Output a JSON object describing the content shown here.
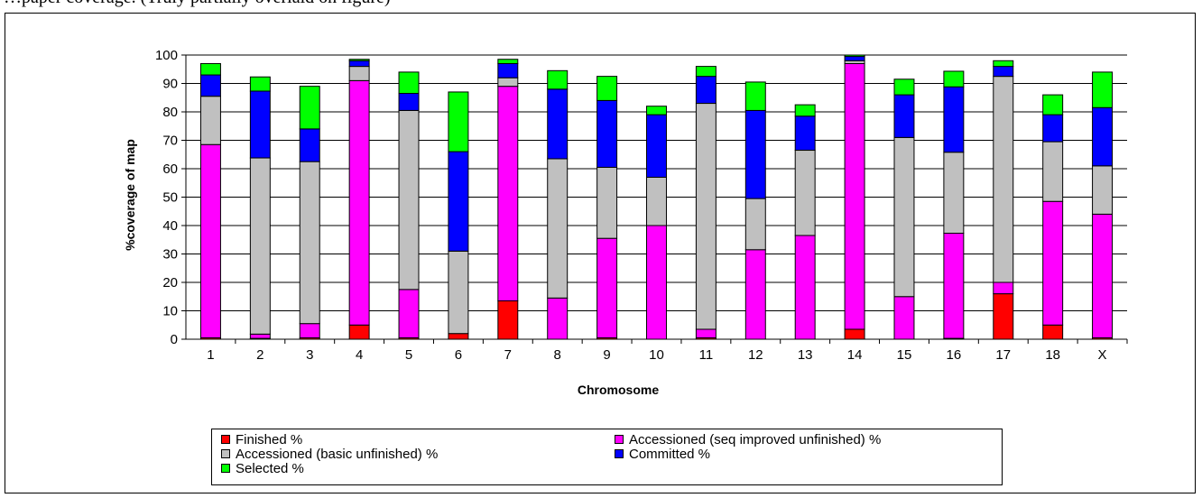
{
  "top_text": "…paper coverage. (Truly partially overlaid on figure)",
  "chart_data": {
    "type": "bar",
    "stacked": true,
    "xlabel": "Chromosome",
    "ylabel": "%coverage of map",
    "ylim": [
      0,
      100
    ],
    "yticks": [
      0,
      10,
      20,
      30,
      40,
      50,
      60,
      70,
      80,
      90,
      100
    ],
    "grid": true,
    "legend_position": "bottom",
    "categories": [
      "1",
      "2",
      "3",
      "4",
      "5",
      "6",
      "7",
      "8",
      "9",
      "10",
      "11",
      "12",
      "13",
      "14",
      "15",
      "16",
      "17",
      "18",
      "X"
    ],
    "series": [
      {
        "name": "Finished %",
        "color": "#ff0000",
        "values": [
          0.5,
          0.3,
          0.5,
          5,
          0.5,
          2,
          13.5,
          0,
          0.5,
          0,
          0.5,
          0,
          0,
          3.5,
          0,
          0.3,
          16,
          5,
          0.5
        ]
      },
      {
        "name": "Accessioned (seq improved unfinished) %",
        "color": "#ff00ff",
        "values": [
          68,
          1.5,
          5,
          86,
          17,
          0,
          75.5,
          14.5,
          35,
          40,
          3,
          31.5,
          36.5,
          93.5,
          15,
          37,
          4,
          43.5,
          43.5
        ]
      },
      {
        "name": "Accessioned (basic unfinished) %",
        "color": "#c0c0c0",
        "values": [
          17,
          62,
          57,
          5,
          63,
          29,
          3,
          49,
          25,
          17,
          79.5,
          18,
          30,
          1,
          56,
          28.5,
          72.5,
          21,
          17
        ]
      },
      {
        "name": "Committed %",
        "color": "#0000ff",
        "values": [
          7.5,
          23.5,
          11.5,
          2,
          6,
          35,
          5,
          24.5,
          23.5,
          22,
          9.5,
          31,
          12,
          1.5,
          15,
          23,
          3.5,
          9.5,
          20.5
        ]
      },
      {
        "name": "Selected %",
        "color": "#00ff00",
        "values": [
          4,
          5,
          15,
          0.5,
          7.5,
          21,
          1.5,
          6.5,
          8.5,
          3,
          3.5,
          10,
          4,
          0.5,
          5.5,
          5.5,
          2,
          7,
          12.5
        ]
      }
    ]
  }
}
